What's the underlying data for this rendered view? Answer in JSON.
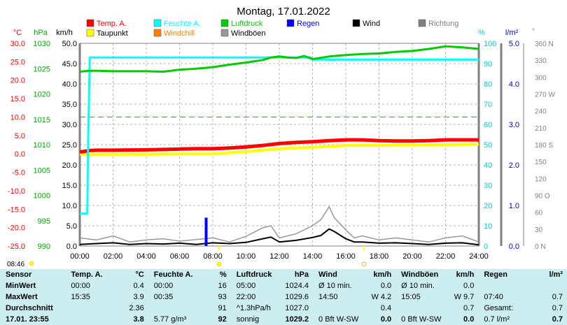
{
  "page": {
    "title": "Montag, 17.01.2022",
    "sunrise_time": "08:46"
  },
  "legend": [
    {
      "label": "Temp. A.",
      "color": "#ff0000"
    },
    {
      "label": "Feuchte A.",
      "color": "#00ffff"
    },
    {
      "label": "Luftdruck",
      "color": "#00cc00"
    },
    {
      "label": "Regen",
      "color": "#0000ff"
    },
    {
      "label": "Wind",
      "color": "#000000"
    },
    {
      "label": "Richtung",
      "color": "#808080"
    },
    {
      "label": "Taupunkt",
      "color": "#ffff00"
    },
    {
      "label": "Windchill",
      "color": "#ff8000"
    },
    {
      "label": "Windböen",
      "color": "#999999"
    }
  ],
  "axes": {
    "temp_unit": "°C",
    "pressure_unit": "hPa",
    "wind_unit": "km/h",
    "humidity_unit": "%",
    "rain_unit": "l/m²",
    "direction_unit": "°",
    "temp_ticks": [
      "30.0",
      "25.0",
      "20.0",
      "15.0",
      "10.0",
      "5.0",
      "0.0",
      "-5.0",
      "-10.0",
      "-15.0",
      "-20.0",
      "-25.0"
    ],
    "pressure_ticks": [
      "1030",
      "1025",
      "1020",
      "1015",
      "1010",
      "1005",
      "1000",
      "995",
      "990"
    ],
    "wind_ticks": [
      "50.0",
      "45.0",
      "40.0",
      "35.0",
      "30.0",
      "25.0",
      "20.0",
      "15.0",
      "10.0",
      "5.0",
      "0.0"
    ],
    "humidity_ticks": [
      "100",
      "90",
      "80",
      "70",
      "60",
      "50",
      "40",
      "30",
      "20",
      "10",
      "0"
    ],
    "rain_ticks": [
      "5.0",
      "4.0",
      "3.0",
      "2.0",
      "1.0",
      "0.0"
    ],
    "direction_ticks": [
      "360 N",
      "330",
      "300",
      "270 W",
      "240",
      "210",
      "180 S",
      "150",
      "120",
      "90 O",
      "60",
      "30",
      "0 N"
    ],
    "time_ticks": [
      "00:00",
      "02:00",
      "04:00",
      "06:00",
      "08:00",
      "10:00",
      "12:00",
      "14:00",
      "16:00",
      "18:00",
      "20:00",
      "22:00",
      "24:00"
    ]
  },
  "chart_data": {
    "type": "line",
    "title": "Montag, 17.01.2022",
    "x_range_hours": [
      0,
      24
    ],
    "ylim_temp": [
      -25,
      30
    ],
    "ylim_pressure": [
      990,
      1030
    ],
    "ylim_wind": [
      0,
      50
    ],
    "ylim_humidity": [
      0,
      100
    ],
    "ylim_rain": [
      0,
      5
    ],
    "series": [
      {
        "name": "Temp. A.",
        "axis": "temp",
        "color": "#ff0000",
        "x": [
          0,
          0.6,
          1,
          2,
          4,
          6,
          7,
          8,
          9,
          10,
          11,
          12,
          13,
          14,
          15,
          16,
          17,
          18,
          19,
          20,
          21,
          22,
          23,
          24
        ],
        "y": [
          0.5,
          0.9,
          1.0,
          1.0,
          1.1,
          1.3,
          1.4,
          1.4,
          1.6,
          1.9,
          2.3,
          2.8,
          3.1,
          3.3,
          3.6,
          3.8,
          3.8,
          3.6,
          3.5,
          3.5,
          3.6,
          3.8,
          3.8,
          3.8
        ]
      },
      {
        "name": "Taupunkt",
        "axis": "temp",
        "color": "#ffff00",
        "x": [
          0,
          0.6,
          1,
          2,
          4,
          6,
          8,
          10,
          11,
          12,
          13,
          14,
          15,
          16,
          18,
          20,
          22,
          24
        ],
        "y": [
          -0.1,
          -0.1,
          -0.1,
          -0.1,
          -0.1,
          0.0,
          0.0,
          0.6,
          1.0,
          1.4,
          1.6,
          1.8,
          2.0,
          2.3,
          2.3,
          2.4,
          2.5,
          2.6
        ]
      },
      {
        "name": "Feuchte A.",
        "axis": "humidity",
        "color": "#00ffff",
        "x": [
          0,
          0.45,
          0.5,
          0.6,
          8,
          12,
          13.9,
          14,
          24
        ],
        "y": [
          16,
          16,
          50,
          93,
          93,
          93,
          93,
          92,
          92
        ]
      },
      {
        "name": "Luftdruck",
        "axis": "pressure",
        "color": "#00cc00",
        "x": [
          0,
          0.5,
          1,
          2,
          4,
          5,
          5.5,
          6,
          7,
          8,
          9,
          10,
          11,
          11.5,
          12,
          12.5,
          13,
          13.5,
          14,
          15,
          16,
          17,
          18,
          19,
          20,
          21,
          22,
          23,
          24
        ],
        "y": [
          1024.4,
          1024.6,
          1024.6,
          1024.5,
          1024.5,
          1024.4,
          1024.6,
          1024.8,
          1025.0,
          1025.3,
          1025.8,
          1026.2,
          1026.7,
          1027.2,
          1027.4,
          1027.2,
          1027.1,
          1027.5,
          1026.9,
          1027.4,
          1027.7,
          1027.9,
          1028.0,
          1028.3,
          1028.5,
          1028.9,
          1029.4,
          1029.2,
          1028.9
        ]
      },
      {
        "name": "Wind",
        "axis": "wind",
        "color": "#000000",
        "x": [
          0,
          1,
          2,
          3,
          4,
          5,
          6,
          7,
          8,
          9,
          10,
          11,
          11.5,
          12,
          13,
          14,
          14.5,
          15,
          15.3,
          16,
          16.5,
          17,
          18,
          19,
          20,
          21,
          22,
          23,
          24
        ],
        "y": [
          0.4,
          0.6,
          0.8,
          0.4,
          0.6,
          0.5,
          0.7,
          0.4,
          0.8,
          0.6,
          0.9,
          1.8,
          2.2,
          1.0,
          1.4,
          2.1,
          2.6,
          4.2,
          3.6,
          1.8,
          1.0,
          1.0,
          0.7,
          0.8,
          0.6,
          0.4,
          0.7,
          0.8,
          0.3
        ]
      },
      {
        "name": "Windböen",
        "axis": "wind",
        "color": "#999999",
        "x": [
          0,
          1,
          2,
          3,
          4,
          5,
          6,
          7,
          8,
          9,
          10,
          11,
          11.5,
          12,
          13,
          14,
          14.5,
          15,
          15.3,
          16,
          16.5,
          17,
          18,
          19,
          20,
          21,
          22,
          23,
          24
        ],
        "y": [
          2.0,
          1.5,
          2.5,
          1.0,
          1.5,
          1.8,
          1.2,
          1.6,
          2.0,
          1.0,
          2.4,
          4.5,
          5.0,
          2.0,
          3.0,
          5.0,
          6.5,
          9.7,
          7.0,
          4.0,
          2.0,
          2.5,
          1.5,
          2.0,
          1.5,
          1.0,
          2.0,
          2.5,
          1.0
        ]
      },
      {
        "name": "Regen",
        "axis": "rain",
        "color": "#0000ff",
        "x": [
          7.6
        ],
        "y": [
          0.7
        ]
      }
    ]
  },
  "summary": {
    "headers": [
      {
        "label": "Sensor",
        "unit": ""
      },
      {
        "label": "Temp. A.",
        "unit": "°C"
      },
      {
        "label": "Feuchte A.",
        "unit": "%"
      },
      {
        "label": "Luftdruck",
        "unit": "hPa"
      },
      {
        "label": "Wind",
        "unit": "km/h"
      },
      {
        "label": "Windböen",
        "unit": "km/h"
      },
      {
        "label": "Regen",
        "unit": "l/m²"
      }
    ],
    "rows": [
      {
        "label": "MinWert",
        "cells": [
          [
            "00:00",
            "0.4"
          ],
          [
            "00:00",
            "16"
          ],
          [
            "05:00",
            "1024.4"
          ],
          [
            "Ø 10 min.",
            "0.0"
          ],
          [
            "Ø 10 min.",
            "0.0"
          ],
          [
            "",
            ""
          ]
        ]
      },
      {
        "label": "MaxWert",
        "cells": [
          [
            "15:35",
            "3.9"
          ],
          [
            "00:35",
            "93"
          ],
          [
            "22:00",
            "1029.6"
          ],
          [
            "14:50",
            "W 4.2"
          ],
          [
            "15:05",
            "W 9.7"
          ],
          [
            "07:40",
            "0.7"
          ]
        ]
      },
      {
        "label": "Durchschnitt",
        "cells": [
          [
            "",
            "2.36"
          ],
          [
            "",
            "91"
          ],
          [
            "^1.3hPa/h",
            "1027.0"
          ],
          [
            "",
            "0.4"
          ],
          [
            "",
            "0.7"
          ],
          [
            "Gesamt:",
            "0.7"
          ]
        ]
      },
      {
        "label": "17.01. 23:55",
        "cells": [
          [
            "",
            "3.8"
          ],
          [
            "5.77 g/m³",
            "92"
          ],
          [
            "sonnig",
            "1029.2"
          ],
          [
            "0 Bft W-SW",
            "0.0"
          ],
          [
            "0 Bft W-SW",
            "0.0"
          ],
          [
            "0.7 l/m²",
            "0.7"
          ]
        ]
      }
    ]
  }
}
